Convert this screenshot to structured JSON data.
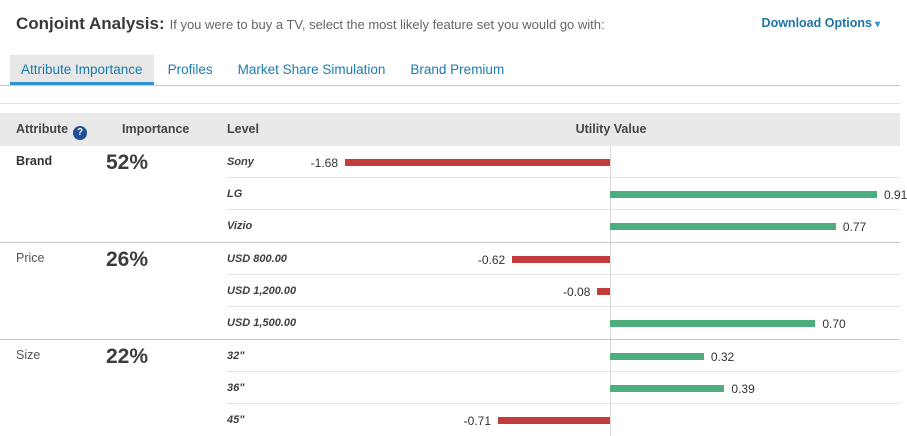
{
  "header": {
    "title": "Conjoint Analysis:",
    "subtitle": "If you were to buy a TV, select the most likely feature set you would go with:",
    "download_label": "Download Options",
    "download_caret": "▾"
  },
  "tabs": [
    {
      "label": "Attribute Importance",
      "active": true
    },
    {
      "label": "Profiles",
      "active": false
    },
    {
      "label": "Market Share Simulation",
      "active": false
    },
    {
      "label": "Brand Premium",
      "active": false
    }
  ],
  "table": {
    "columns": {
      "attribute": "Attribute",
      "importance": "Importance",
      "level": "Level",
      "utility": "Utility Value"
    },
    "help_glyph": "?"
  },
  "chart_data": {
    "type": "bar",
    "orientation": "horizontal-diverging",
    "title": "Conjoint Analysis — Attribute Importance / Utility Values",
    "xlabel": "Utility Value",
    "value_range": [
      -1.68,
      0.91
    ],
    "zero_axis_line": true,
    "colors": {
      "positive": "#4ead7c",
      "negative": "#c43b3c"
    },
    "negative_max": 1.68,
    "positive_max": 0.91,
    "sections": [
      {
        "attribute": "Brand",
        "importance": "52%",
        "bold": true,
        "levels": [
          {
            "label": "Sony",
            "value": -1.68
          },
          {
            "label": "LG",
            "value": 0.91
          },
          {
            "label": "Vizio",
            "value": 0.77
          }
        ]
      },
      {
        "attribute": "Price",
        "importance": "26%",
        "bold": false,
        "levels": [
          {
            "label": "USD 800.00",
            "value": -0.62
          },
          {
            "label": "USD 1,200.00",
            "value": -0.08
          },
          {
            "label": "USD 1,500.00",
            "value": 0.7
          }
        ]
      },
      {
        "attribute": "Size",
        "importance": "22%",
        "bold": false,
        "levels": [
          {
            "label": "32\"",
            "value": 0.32
          },
          {
            "label": "36\"",
            "value": 0.39
          },
          {
            "label": "45\"",
            "value": -0.71
          }
        ]
      }
    ]
  }
}
